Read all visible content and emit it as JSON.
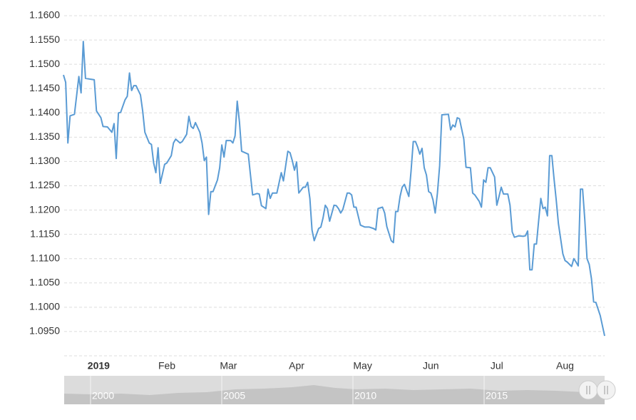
{
  "chart_data": {
    "type": "line",
    "color": "#5a9bd4",
    "grid": true,
    "xlim": [
      0,
      246
    ],
    "xticks": [
      {
        "value": 16,
        "label": "2019"
      },
      {
        "value": 47,
        "label": "Feb"
      },
      {
        "value": 75,
        "label": "Mar"
      },
      {
        "value": 106,
        "label": "Apr"
      },
      {
        "value": 136,
        "label": "May"
      },
      {
        "value": 167,
        "label": "Jun"
      },
      {
        "value": 197,
        "label": "Jul"
      },
      {
        "value": 228,
        "label": "Aug"
      }
    ],
    "ylim": [
      1.09,
      1.16
    ],
    "yticks": [
      {
        "value": 1.095,
        "label": "1.0950"
      },
      {
        "value": 1.1,
        "label": "1.1000"
      },
      {
        "value": 1.105,
        "label": "1.1050"
      },
      {
        "value": 1.11,
        "label": "1.1100"
      },
      {
        "value": 1.115,
        "label": "1.1150"
      },
      {
        "value": 1.12,
        "label": "1.1200"
      },
      {
        "value": 1.125,
        "label": "1.1250"
      },
      {
        "value": 1.13,
        "label": "1.1300"
      },
      {
        "value": 1.135,
        "label": "1.1350"
      },
      {
        "value": 1.14,
        "label": "1.1400"
      },
      {
        "value": 1.145,
        "label": "1.1450"
      },
      {
        "value": 1.15,
        "label": "1.1500"
      },
      {
        "value": 1.155,
        "label": "1.1550"
      },
      {
        "value": 1.16,
        "label": "1.1600"
      }
    ],
    "x": [
      0,
      1,
      2,
      3,
      5,
      7,
      8,
      9,
      10,
      14,
      15,
      17,
      18,
      20,
      22,
      23,
      24,
      25,
      26,
      28,
      29,
      30,
      31,
      32,
      33,
      35,
      36,
      37,
      39,
      40,
      41,
      42,
      43,
      44,
      46,
      47,
      49,
      50,
      51,
      53,
      54,
      56,
      57,
      58,
      59,
      60,
      62,
      63,
      64,
      65,
      66,
      67,
      68,
      70,
      71,
      72,
      73,
      74,
      76,
      77,
      78,
      79,
      80,
      81,
      84,
      85,
      86,
      88,
      89,
      90,
      92,
      93,
      94,
      95,
      97,
      98,
      99,
      100,
      102,
      103,
      104,
      105,
      106,
      107,
      109,
      110,
      111,
      112,
      113,
      114,
      116,
      117,
      118,
      119,
      120,
      121,
      123,
      124,
      125,
      126,
      127,
      129,
      130,
      131,
      132,
      133,
      135,
      137,
      139,
      141,
      142,
      143,
      145,
      146,
      147,
      149,
      150,
      151,
      152,
      153,
      154,
      155,
      157,
      158,
      159,
      160,
      161,
      162,
      163,
      164,
      165,
      166,
      167,
      168,
      169,
      170,
      171,
      172,
      175,
      176,
      177,
      178,
      179,
      180,
      182,
      183,
      185,
      186,
      187,
      189,
      190,
      191,
      192,
      193,
      194,
      196,
      197,
      198,
      199,
      200,
      202,
      203,
      204,
      205,
      207,
      209,
      210,
      211,
      212,
      213,
      214,
      215,
      216,
      217,
      218,
      219,
      220,
      221,
      222,
      223,
      224,
      225,
      227,
      228,
      229,
      231,
      232,
      233,
      234,
      235,
      236,
      237,
      238,
      239,
      240,
      241,
      242,
      244,
      246
    ],
    "values": [
      1.1478,
      1.1463,
      1.1338,
      1.1394,
      1.1397,
      1.1475,
      1.1441,
      1.1547,
      1.1471,
      1.1468,
      1.1404,
      1.139,
      1.1372,
      1.1371,
      1.136,
      1.1378,
      1.1306,
      1.14,
      1.1401,
      1.1427,
      1.1434,
      1.1482,
      1.1446,
      1.1456,
      1.1456,
      1.1437,
      1.1404,
      1.136,
      1.1338,
      1.1335,
      1.1297,
      1.1277,
      1.1328,
      1.1255,
      1.1294,
      1.1297,
      1.1312,
      1.1338,
      1.1346,
      1.1338,
      1.1341,
      1.1356,
      1.1393,
      1.1372,
      1.1368,
      1.138,
      1.136,
      1.1338,
      1.1302,
      1.1309,
      1.1191,
      1.1238,
      1.1238,
      1.1262,
      1.1287,
      1.1334,
      1.1309,
      1.1343,
      1.1343,
      1.1338,
      1.1353,
      1.1424,
      1.1382,
      1.1321,
      1.1315,
      1.1272,
      1.1231,
      1.1234,
      1.1233,
      1.1209,
      1.1203,
      1.1243,
      1.1224,
      1.1235,
      1.1235,
      1.1256,
      1.1277,
      1.126,
      1.1321,
      1.1318,
      1.1302,
      1.1282,
      1.1299,
      1.1235,
      1.1247,
      1.1247,
      1.1257,
      1.1224,
      1.1159,
      1.1137,
      1.1162,
      1.1165,
      1.1184,
      1.121,
      1.1203,
      1.1177,
      1.121,
      1.1209,
      1.1203,
      1.1194,
      1.1201,
      1.1235,
      1.1235,
      1.1231,
      1.1206,
      1.1206,
      1.1169,
      1.1165,
      1.1165,
      1.1162,
      1.1159,
      1.1203,
      1.1206,
      1.1194,
      1.1166,
      1.1137,
      1.1133,
      1.1197,
      1.1197,
      1.1228,
      1.1247,
      1.1253,
      1.1228,
      1.128,
      1.1341,
      1.1341,
      1.133,
      1.1315,
      1.1327,
      1.1287,
      1.1272,
      1.1238,
      1.1235,
      1.1221,
      1.1194,
      1.1235,
      1.1291,
      1.1396,
      1.1397,
      1.1365,
      1.1375,
      1.1371,
      1.139,
      1.1388,
      1.1346,
      1.1288,
      1.1287,
      1.1235,
      1.1231,
      1.1218,
      1.1206,
      1.1262,
      1.1257,
      1.1287,
      1.1287,
      1.1268,
      1.121,
      1.1228,
      1.1247,
      1.1233,
      1.1233,
      1.121,
      1.1155,
      1.1144,
      1.1147,
      1.1146,
      1.1147,
      1.1157,
      1.1077,
      1.1077,
      1.113,
      1.113,
      1.1177,
      1.1224,
      1.1203,
      1.1206,
      1.1188,
      1.1312,
      1.1312,
      1.1265,
      1.1221,
      1.1172,
      1.111,
      1.1096,
      1.1093,
      1.1084,
      1.11,
      1.1093,
      1.1085,
      1.1243,
      1.1243,
      1.118,
      1.11,
      1.1088,
      1.1059,
      1.1011,
      1.101,
      1.0983,
      1.0941
    ],
    "navigator": {
      "labels": [
        "2000",
        "2005",
        "2010",
        "2015"
      ]
    }
  }
}
